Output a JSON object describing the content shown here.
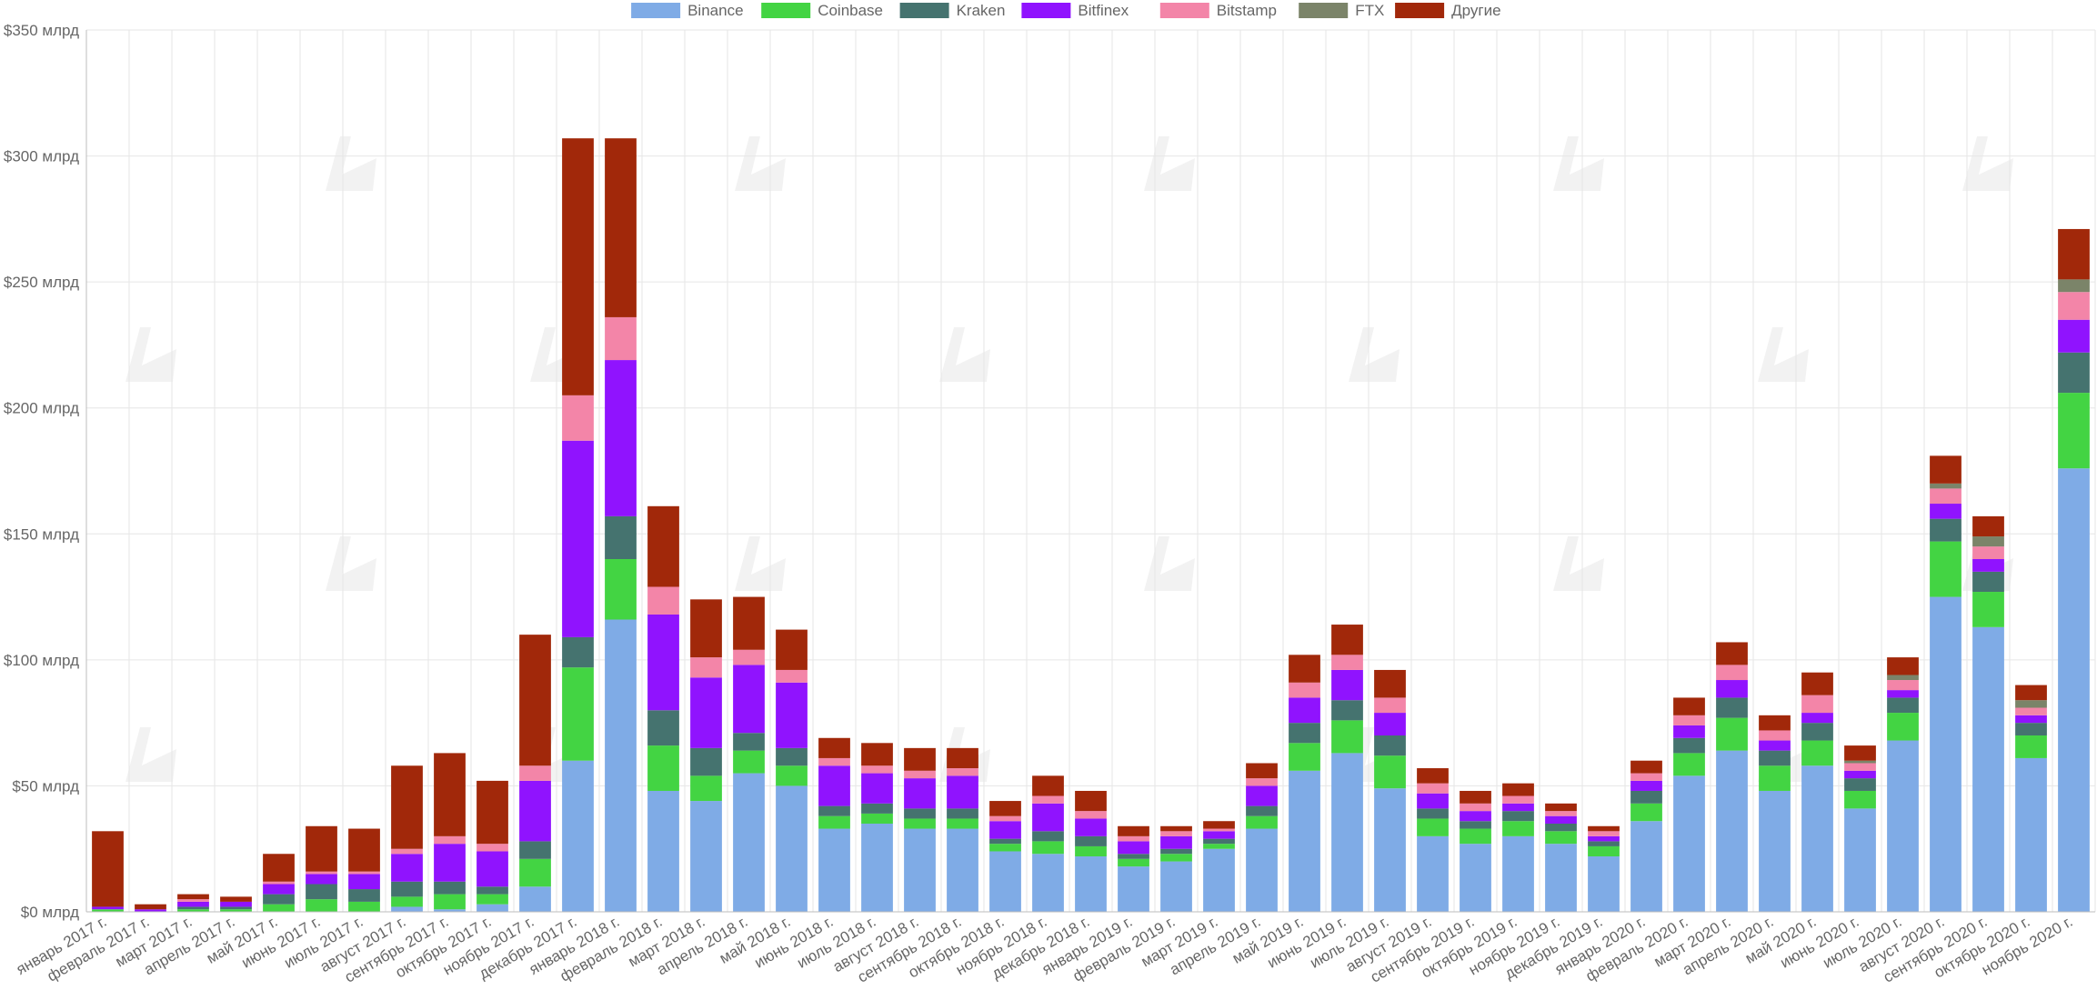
{
  "chart_data": {
    "type": "bar",
    "stacked": true,
    "title": "",
    "xlabel": "",
    "ylabel": "",
    "ylim": [
      0,
      350
    ],
    "y_tick_values": [
      0,
      50,
      100,
      150,
      200,
      250,
      300,
      350
    ],
    "y_tick_labels": [
      "$0 млрд",
      "$50 млрд",
      "$100 млрд",
      "$150 млрд",
      "$200 млрд",
      "$250 млрд",
      "$300 млрд",
      "$350 млрд"
    ],
    "grid": true,
    "legend_position": "top-center",
    "categories": [
      "январь 2017 г.",
      "февраль 2017 г.",
      "март 2017 г.",
      "апрель 2017 г.",
      "май 2017 г.",
      "июнь 2017 г.",
      "июль 2017 г.",
      "август 2017 г.",
      "сентябрь 2017 г.",
      "октябрь 2017 г.",
      "ноябрь 2017 г.",
      "декабрь 2017 г.",
      "январь 2018 г.",
      "февраль 2018 г.",
      "март 2018 г.",
      "апрель 2018 г.",
      "май 2018 г.",
      "июнь 2018 г.",
      "июль 2018 г.",
      "август 2018 г.",
      "сентябрь 2018 г.",
      "октябрь 2018 г.",
      "ноябрь 2018 г.",
      "декабрь 2018 г.",
      "январь 2019 г.",
      "февраль 2019 г.",
      "март 2019 г.",
      "апрель 2019 г.",
      "май 2019 г.",
      "июнь 2019 г.",
      "июль 2019 г.",
      "август 2019 г.",
      "сентябрь 2019 г.",
      "октябрь 2019 г.",
      "ноябрь 2019 г.",
      "декабрь 2019 г.",
      "январь 2020 г.",
      "февраль 2020 г.",
      "март 2020 г.",
      "апрель 2020 г.",
      "май 2020 г.",
      "июнь 2020 г.",
      "июль 2020 г.",
      "август 2020 г.",
      "сентябрь 2020 г.",
      "октябрь 2020 г.",
      "ноябрь 2020 г."
    ],
    "series": [
      {
        "name": "Binance",
        "color": "#7fabe6",
        "values": [
          0,
          0,
          0,
          0,
          0,
          0,
          0,
          2,
          1,
          3,
          10,
          60,
          116,
          48,
          44,
          55,
          50,
          33,
          35,
          33,
          33,
          24,
          23,
          22,
          18,
          20,
          25,
          33,
          56,
          63,
          49,
          30,
          27,
          30,
          27,
          22,
          36,
          54,
          64,
          48,
          58,
          41,
          68,
          125,
          113,
          61,
          176
        ]
      },
      {
        "name": "Coinbase",
        "color": "#43d443",
        "values": [
          1,
          0,
          1,
          1,
          3,
          5,
          4,
          4,
          6,
          4,
          11,
          37,
          24,
          18,
          10,
          9,
          8,
          5,
          4,
          4,
          4,
          3,
          5,
          4,
          3,
          3,
          2,
          5,
          11,
          13,
          13,
          7,
          6,
          6,
          5,
          4,
          7,
          9,
          13,
          10,
          10,
          7,
          11,
          22,
          14,
          9,
          30
        ]
      },
      {
        "name": "Kraken",
        "color": "#45736f",
        "values": [
          0,
          0,
          1,
          1,
          4,
          6,
          5,
          6,
          5,
          3,
          7,
          12,
          17,
          14,
          11,
          7,
          7,
          4,
          4,
          4,
          4,
          2,
          4,
          4,
          2,
          2,
          2,
          4,
          8,
          8,
          8,
          4,
          3,
          4,
          3,
          2,
          5,
          6,
          8,
          6,
          7,
          5,
          6,
          9,
          8,
          5,
          16
        ]
      },
      {
        "name": "Bitfinex",
        "color": "#9013fe",
        "values": [
          1,
          1,
          2,
          2,
          4,
          4,
          6,
          11,
          15,
          14,
          24,
          78,
          62,
          38,
          28,
          27,
          26,
          16,
          12,
          12,
          13,
          7,
          11,
          7,
          5,
          5,
          3,
          8,
          10,
          12,
          9,
          6,
          4,
          3,
          3,
          2,
          4,
          5,
          7,
          4,
          4,
          3,
          3,
          6,
          5,
          3,
          13
        ]
      },
      {
        "name": "Bitstamp",
        "color": "#f385a8",
        "values": [
          0,
          0,
          1,
          0,
          1,
          1,
          1,
          2,
          3,
          3,
          6,
          18,
          17,
          11,
          8,
          6,
          5,
          3,
          3,
          3,
          3,
          2,
          3,
          3,
          2,
          2,
          1,
          3,
          6,
          6,
          6,
          4,
          3,
          3,
          2,
          2,
          3,
          4,
          6,
          4,
          7,
          3,
          4,
          6,
          5,
          3,
          11
        ]
      },
      {
        "name": "FTX",
        "color": "#7b8469",
        "values": [
          0,
          0,
          0,
          0,
          0,
          0,
          0,
          0,
          0,
          0,
          0,
          0,
          0,
          0,
          0,
          0,
          0,
          0,
          0,
          0,
          0,
          0,
          0,
          0,
          0,
          0,
          0,
          0,
          0,
          0,
          0,
          0,
          0,
          0,
          0,
          0,
          0,
          0,
          0,
          0,
          0,
          1,
          2,
          2,
          4,
          3,
          5
        ]
      },
      {
        "name": "Другие",
        "color": "#a1280a",
        "values": [
          30,
          2,
          2,
          2,
          11,
          18,
          17,
          33,
          33,
          25,
          52,
          102,
          71,
          32,
          23,
          21,
          16,
          8,
          9,
          9,
          8,
          6,
          8,
          8,
          4,
          2,
          3,
          6,
          11,
          12,
          11,
          6,
          5,
          5,
          3,
          2,
          5,
          7,
          9,
          6,
          9,
          6,
          7,
          11,
          8,
          6,
          20
        ]
      }
    ]
  }
}
